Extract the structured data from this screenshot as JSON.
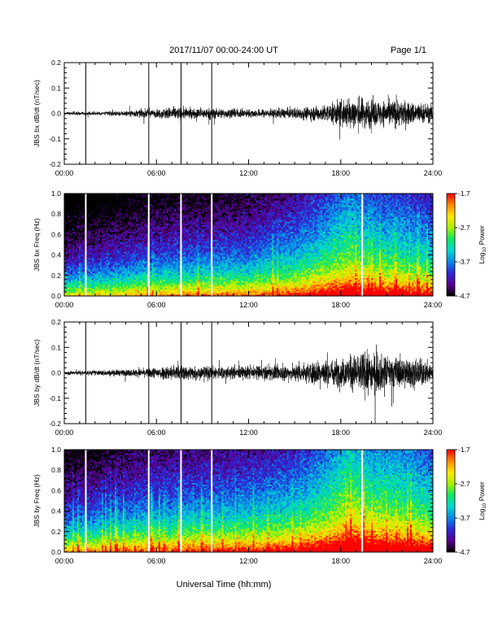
{
  "header": {
    "title": "2017/11/07  00:00-24:00 UT",
    "page": "Page 1/1"
  },
  "footer": {
    "xlabel": "Universal Time (hh:mm)"
  },
  "colors": {
    "background": "#ffffff",
    "trace": "#000000",
    "colorbar_stops": [
      "#000000",
      "#5a0090",
      "#2a28d8",
      "#0a88e8",
      "#00d8d0",
      "#10e860",
      "#a8f000",
      "#ffe800",
      "#ff8800",
      "#ff0000"
    ]
  },
  "chart_data": [
    {
      "type": "line",
      "ylabel": "JBS bx dB/dt (nT/sec)",
      "x_ticks": [
        "00:00",
        "06:00",
        "12:00",
        "18:00",
        "24:00"
      ],
      "xlim": [
        0,
        24
      ],
      "ylim": [
        -0.2,
        0.2
      ],
      "y_ticks": [
        "-0.2",
        "-0.1",
        "0.0",
        "0.1",
        "0.2"
      ],
      "spikes_hours": [
        1.4,
        5.5,
        7.6,
        9.6
      ],
      "envelope": {
        "hours": [
          0,
          2,
          4,
          5.3,
          5.8,
          6.8,
          7.5,
          8.5,
          9.5,
          11,
          13,
          15,
          16,
          17,
          18,
          18.8,
          19.5,
          20.5,
          21.5,
          22.5,
          23.5,
          24
        ],
        "amplitude_nT_per_s": [
          0.012,
          0.014,
          0.02,
          0.03,
          0.025,
          0.045,
          0.045,
          0.035,
          0.04,
          0.03,
          0.03,
          0.04,
          0.05,
          0.06,
          0.1,
          0.12,
          0.11,
          0.09,
          0.1,
          0.085,
          0.07,
          0.06
        ]
      }
    },
    {
      "type": "heatmap",
      "ylabel": "JBS bx Freq (Hz)",
      "x_ticks": [
        "00:00",
        "06:00",
        "12:00",
        "18:00",
        "24:00"
      ],
      "xlim": [
        0,
        24
      ],
      "ylim": [
        0.0,
        1.0
      ],
      "y_ticks": [
        "0.0",
        "0.2",
        "0.4",
        "0.6",
        "0.8",
        "1.0"
      ],
      "colorbar": {
        "label": "Log10 Power",
        "label_base": "Log",
        "label_sub": "10",
        "label_rest": " Power",
        "range": [
          -4.7,
          -1.7
        ],
        "ticks": [
          "-1.7",
          "-2.7",
          "-3.7",
          "-4.7"
        ]
      },
      "gap_lines_hours": [
        1.4,
        5.5,
        7.6,
        9.6,
        19.4
      ],
      "background_power": {
        "hours": [
          0,
          2,
          5,
          8,
          12,
          15,
          17,
          18.5,
          20,
          22,
          24
        ],
        "log10_power": [
          -4.3,
          -4.2,
          -4.0,
          -3.9,
          -3.8,
          -3.5,
          -3.2,
          -2.9,
          -3.1,
          -3.2,
          -3.4
        ]
      }
    },
    {
      "type": "line",
      "ylabel": "JBS by dB/dt (nT/sec)",
      "x_ticks": [
        "00:00",
        "06:00",
        "12:00",
        "18:00",
        "24:00"
      ],
      "xlim": [
        0,
        24
      ],
      "ylim": [
        -0.2,
        0.2
      ],
      "y_ticks": [
        "-0.2",
        "-0.1",
        "0.0",
        "0.1",
        "0.2"
      ],
      "spikes_hours": [
        1.4,
        5.5,
        7.6,
        9.6
      ],
      "envelope": {
        "hours": [
          0,
          2,
          4,
          5.3,
          6,
          7,
          8.5,
          9.5,
          11,
          13,
          15,
          16,
          17,
          18,
          19,
          20,
          21,
          22,
          23,
          24
        ],
        "amplitude_nT_per_s": [
          0.015,
          0.018,
          0.025,
          0.03,
          0.045,
          0.055,
          0.05,
          0.05,
          0.045,
          0.05,
          0.06,
          0.08,
          0.1,
          0.1,
          0.14,
          0.15,
          0.12,
          0.11,
          0.1,
          0.08
        ]
      }
    },
    {
      "type": "heatmap",
      "ylabel": "JBS by Freq (Hz)",
      "x_ticks": [
        "00:00",
        "06:00",
        "12:00",
        "18:00",
        "24:00"
      ],
      "xlim": [
        0,
        24
      ],
      "ylim": [
        0.0,
        1.0
      ],
      "y_ticks": [
        "0.0",
        "0.2",
        "0.4",
        "0.6",
        "0.8",
        "1.0"
      ],
      "colorbar": {
        "label": "Log10 Power",
        "label_base": "Log",
        "label_sub": "10",
        "label_rest": " Power",
        "range": [
          -4.7,
          -1.7
        ],
        "ticks": [
          "-1.7",
          "-2.7",
          "-3.7",
          "-4.7"
        ]
      },
      "gap_lines_hours": [
        1.4,
        5.5,
        7.6,
        9.6,
        19.4
      ],
      "background_power": {
        "hours": [
          0,
          2,
          5,
          8,
          12,
          15,
          17,
          18.5,
          20,
          22,
          24
        ],
        "log10_power": [
          -4.0,
          -3.9,
          -3.7,
          -3.6,
          -3.5,
          -3.3,
          -3.0,
          -2.6,
          -2.8,
          -2.9,
          -3.1
        ]
      }
    }
  ]
}
